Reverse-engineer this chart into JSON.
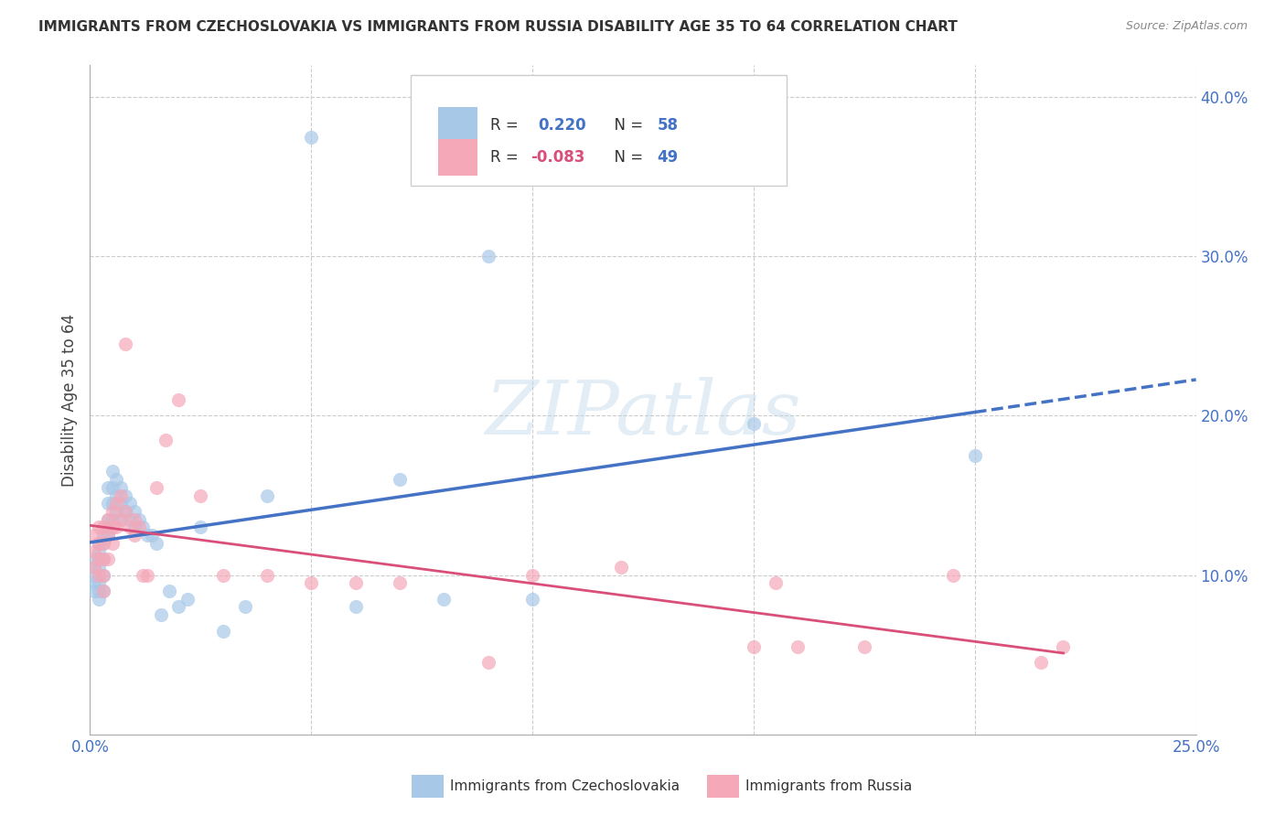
{
  "title": "IMMIGRANTS FROM CZECHOSLOVAKIA VS IMMIGRANTS FROM RUSSIA DISABILITY AGE 35 TO 64 CORRELATION CHART",
  "source": "Source: ZipAtlas.com",
  "xlabel_czech": "Immigrants from Czechoslovakia",
  "xlabel_russia": "Immigrants from Russia",
  "ylabel": "Disability Age 35 to 64",
  "xlim": [
    0.0,
    0.25
  ],
  "ylim": [
    0.0,
    0.42
  ],
  "xticks_labels": [
    0.0,
    0.25
  ],
  "yticks_right": [
    0.1,
    0.2,
    0.3,
    0.4
  ],
  "yticks_grid": [
    0.1,
    0.2,
    0.3,
    0.4
  ],
  "xticks_grid": [
    0.05,
    0.1,
    0.15,
    0.2,
    0.25
  ],
  "color_czech": "#a8c8e8",
  "color_russia": "#f4a8b8",
  "color_czech_line": "#4472c4",
  "color_russia_line": "#d94f7a",
  "color_axis_labels": "#4472c4",
  "color_title": "#333333",
  "color_source": "#888888",
  "background": "#ffffff",
  "watermark": "ZIPatlas",
  "czech_x": [
    0.001,
    0.001,
    0.001,
    0.001,
    0.001,
    0.002,
    0.002,
    0.002,
    0.002,
    0.002,
    0.002,
    0.002,
    0.003,
    0.003,
    0.003,
    0.003,
    0.003,
    0.004,
    0.004,
    0.004,
    0.004,
    0.005,
    0.005,
    0.005,
    0.005,
    0.006,
    0.006,
    0.006,
    0.007,
    0.007,
    0.007,
    0.008,
    0.008,
    0.009,
    0.009,
    0.01,
    0.01,
    0.011,
    0.012,
    0.013,
    0.014,
    0.015,
    0.016,
    0.018,
    0.02,
    0.022,
    0.025,
    0.03,
    0.035,
    0.04,
    0.05,
    0.06,
    0.07,
    0.08,
    0.09,
    0.1,
    0.15,
    0.2
  ],
  "czech_y": [
    0.11,
    0.105,
    0.1,
    0.095,
    0.09,
    0.12,
    0.115,
    0.11,
    0.105,
    0.095,
    0.09,
    0.085,
    0.125,
    0.12,
    0.11,
    0.1,
    0.09,
    0.155,
    0.145,
    0.135,
    0.125,
    0.165,
    0.155,
    0.145,
    0.135,
    0.16,
    0.15,
    0.14,
    0.155,
    0.145,
    0.135,
    0.15,
    0.14,
    0.145,
    0.135,
    0.14,
    0.13,
    0.135,
    0.13,
    0.125,
    0.125,
    0.12,
    0.075,
    0.09,
    0.08,
    0.085,
    0.13,
    0.065,
    0.08,
    0.15,
    0.375,
    0.08,
    0.16,
    0.085,
    0.3,
    0.085,
    0.195,
    0.175
  ],
  "russia_x": [
    0.001,
    0.001,
    0.001,
    0.002,
    0.002,
    0.002,
    0.002,
    0.003,
    0.003,
    0.003,
    0.003,
    0.003,
    0.004,
    0.004,
    0.004,
    0.005,
    0.005,
    0.005,
    0.006,
    0.006,
    0.007,
    0.007,
    0.008,
    0.008,
    0.009,
    0.01,
    0.01,
    0.011,
    0.012,
    0.013,
    0.015,
    0.017,
    0.02,
    0.025,
    0.03,
    0.04,
    0.05,
    0.06,
    0.07,
    0.09,
    0.1,
    0.12,
    0.15,
    0.155,
    0.16,
    0.175,
    0.195,
    0.215,
    0.22
  ],
  "russia_y": [
    0.125,
    0.115,
    0.105,
    0.13,
    0.12,
    0.11,
    0.1,
    0.13,
    0.12,
    0.11,
    0.1,
    0.09,
    0.135,
    0.125,
    0.11,
    0.14,
    0.13,
    0.12,
    0.145,
    0.13,
    0.15,
    0.135,
    0.245,
    0.14,
    0.13,
    0.135,
    0.125,
    0.13,
    0.1,
    0.1,
    0.155,
    0.185,
    0.21,
    0.15,
    0.1,
    0.1,
    0.095,
    0.095,
    0.095,
    0.045,
    0.1,
    0.105,
    0.055,
    0.095,
    0.055,
    0.055,
    0.1,
    0.045,
    0.055
  ]
}
